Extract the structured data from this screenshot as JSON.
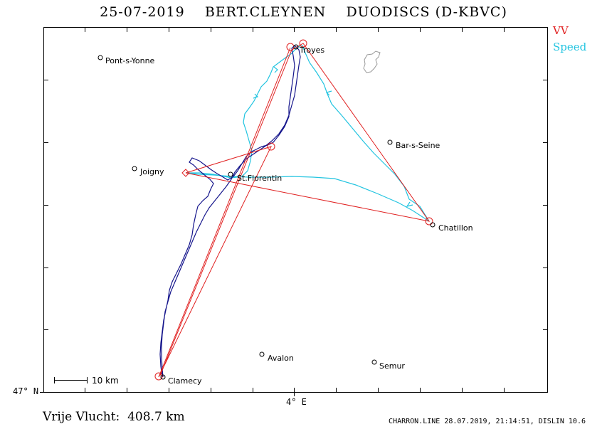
{
  "header": {
    "date": "25-07-2019",
    "pilot": "BERT.CLEYNEN",
    "glider": "DUODISCS (D-KBVC)"
  },
  "legend": {
    "vv": {
      "label": "VV",
      "color": "#e02020"
    },
    "speed": {
      "label": "Speed",
      "color": "#22c4e0"
    }
  },
  "track_color": "#16168c",
  "axes": {
    "lat_label": "47° N",
    "lon_label": "4° E"
  },
  "scale_bar": {
    "label": "10 km"
  },
  "towns": [
    {
      "name": "Pont-s-Yonne",
      "lon": 3.2,
      "lat": 48.29
    },
    {
      "name": "Troyes",
      "lon": 4.03,
      "lat": 48.3
    },
    {
      "name": "Bar-s-Seine",
      "lon": 4.37,
      "lat": 48.11
    },
    {
      "name": "Joigny",
      "lon": 3.39,
      "lat": 47.98
    },
    {
      "name": "St.Florentin",
      "lon": 3.73,
      "lat": 47.97
    },
    {
      "name": "Chatillon",
      "lon": 4.57,
      "lat": 47.87
    },
    {
      "name": "Avalon",
      "lon": 3.9,
      "lat": 47.49
    },
    {
      "name": "Semur",
      "lon": 4.34,
      "lat": 47.49
    },
    {
      "name": "Clamecy",
      "lon": 3.52,
      "lat": 47.45
    }
  ],
  "distance": {
    "label": "Vrije Vlucht:",
    "value": "408.7 km"
  },
  "footer": "CHARRON.LINE 28.07.2019, 21:14:51, DISLIN 10.6"
}
